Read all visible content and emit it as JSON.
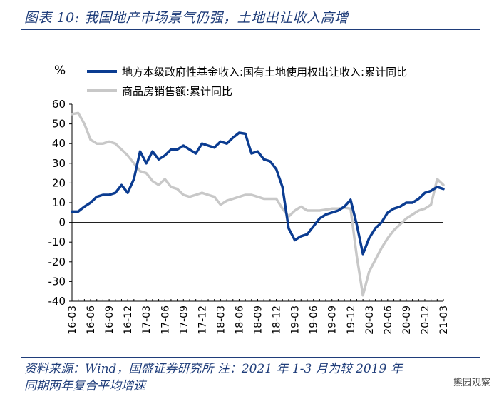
{
  "header": {
    "title": "图表 10: 我国地产市场景气仍强，土地出让收入高增"
  },
  "footer": {
    "source_line1": "资料来源：Wind，国盛证券研究所  注：2021 年 1-3 月为较 2019 年",
    "source_line2": "同期两年复合平均增速"
  },
  "watermark": {
    "text": "熊园观察"
  },
  "colors": {
    "series1": "#0b3c91",
    "series2": "#c8c8c8",
    "axis": "#000000",
    "text_dark": "#1f3d7a"
  },
  "chart_data": {
    "type": "line",
    "ylabel": "%",
    "ylim": [
      -40,
      60
    ],
    "yticks": [
      60,
      50,
      40,
      30,
      20,
      10,
      0,
      -10,
      -20,
      -30,
      -40
    ],
    "xlim": [
      0,
      60
    ],
    "x_ticks": [
      {
        "label": "16-03",
        "x": 0
      },
      {
        "label": "16-06",
        "x": 3
      },
      {
        "label": "16-09",
        "x": 6
      },
      {
        "label": "16-12",
        "x": 9
      },
      {
        "label": "17-03",
        "x": 12
      },
      {
        "label": "17-06",
        "x": 15
      },
      {
        "label": "17-09",
        "x": 18
      },
      {
        "label": "17-12",
        "x": 21
      },
      {
        "label": "18-03",
        "x": 24
      },
      {
        "label": "18-06",
        "x": 27
      },
      {
        "label": "18-09",
        "x": 30
      },
      {
        "label": "18-12",
        "x": 33
      },
      {
        "label": "19-03",
        "x": 36
      },
      {
        "label": "19-06",
        "x": 39
      },
      {
        "label": "19-09",
        "x": 42
      },
      {
        "label": "19-12",
        "x": 45
      },
      {
        "label": "20-03",
        "x": 48
      },
      {
        "label": "20-06",
        "x": 51
      },
      {
        "label": "20-09",
        "x": 54
      },
      {
        "label": "20-12",
        "x": 57
      },
      {
        "label": "21-03",
        "x": 60
      }
    ],
    "legend_position": "top",
    "series": [
      {
        "name": "地方本级政府性基金收入:国有土地使用权出让收入:累计同比",
        "points": [
          [
            0,
            5.5
          ],
          [
            1,
            5.5
          ],
          [
            2,
            8
          ],
          [
            3,
            10
          ],
          [
            4,
            13
          ],
          [
            5,
            14
          ],
          [
            6,
            14
          ],
          [
            7,
            15
          ],
          [
            8,
            19
          ],
          [
            9,
            15
          ],
          [
            10,
            22
          ],
          [
            11,
            36
          ],
          [
            12,
            30
          ],
          [
            13,
            36
          ],
          [
            14,
            32
          ],
          [
            15,
            34
          ],
          [
            16,
            37
          ],
          [
            17,
            37
          ],
          [
            18,
            39
          ],
          [
            19,
            37
          ],
          [
            20,
            35
          ],
          [
            21,
            40
          ],
          [
            22,
            39
          ],
          [
            23,
            38
          ],
          [
            24,
            41
          ],
          [
            25,
            40
          ],
          [
            26,
            43
          ],
          [
            27,
            45.5
          ],
          [
            28,
            45
          ],
          [
            29,
            35
          ],
          [
            30,
            36
          ],
          [
            31,
            32
          ],
          [
            32,
            31
          ],
          [
            33,
            27
          ],
          [
            34,
            18
          ],
          [
            35,
            -3
          ],
          [
            36,
            -9
          ],
          [
            37,
            -7
          ],
          [
            38,
            -6
          ],
          [
            39,
            -2
          ],
          [
            40,
            2
          ],
          [
            41,
            4
          ],
          [
            42,
            5
          ],
          [
            43,
            6
          ],
          [
            44,
            8
          ],
          [
            45,
            11.5
          ],
          [
            46,
            -1
          ],
          [
            47,
            -16
          ],
          [
            48,
            -8
          ],
          [
            49,
            -3
          ],
          [
            50,
            0
          ],
          [
            51,
            5
          ],
          [
            52,
            7
          ],
          [
            53,
            8
          ],
          [
            54,
            10
          ],
          [
            55,
            10
          ],
          [
            56,
            12
          ],
          [
            57,
            15
          ],
          [
            58,
            16
          ],
          [
            59,
            18
          ],
          [
            60,
            17
          ]
        ]
      },
      {
        "name": "商品房销售额:累计同比",
        "points": [
          [
            0,
            55
          ],
          [
            1,
            55.5
          ],
          [
            2,
            50
          ],
          [
            3,
            42
          ],
          [
            4,
            40
          ],
          [
            5,
            40
          ],
          [
            6,
            41
          ],
          [
            7,
            40
          ],
          [
            8,
            37
          ],
          [
            9,
            34
          ],
          [
            10,
            30
          ],
          [
            11,
            26
          ],
          [
            12,
            25
          ],
          [
            13,
            21
          ],
          [
            14,
            19
          ],
          [
            15,
            22
          ],
          [
            16,
            18
          ],
          [
            17,
            17
          ],
          [
            18,
            14
          ],
          [
            19,
            13
          ],
          [
            20,
            14
          ],
          [
            21,
            15
          ],
          [
            22,
            14
          ],
          [
            23,
            13
          ],
          [
            24,
            9
          ],
          [
            25,
            11
          ],
          [
            26,
            12
          ],
          [
            27,
            13
          ],
          [
            28,
            14
          ],
          [
            29,
            14
          ],
          [
            30,
            13
          ],
          [
            31,
            12
          ],
          [
            32,
            12
          ],
          [
            33,
            12
          ],
          [
            34,
            7
          ],
          [
            35,
            3
          ],
          [
            36,
            6
          ],
          [
            37,
            8
          ],
          [
            38,
            6
          ],
          [
            39,
            6
          ],
          [
            40,
            6
          ],
          [
            41,
            6.5
          ],
          [
            42,
            7
          ],
          [
            43,
            7
          ],
          [
            44,
            7.5
          ],
          [
            45,
            7
          ],
          [
            46,
            -17
          ],
          [
            47,
            -37
          ],
          [
            48,
            -25
          ],
          [
            49,
            -19
          ],
          [
            50,
            -13
          ],
          [
            51,
            -8
          ],
          [
            52,
            -4
          ],
          [
            53,
            -1
          ],
          [
            54,
            2
          ],
          [
            55,
            4
          ],
          [
            56,
            6
          ],
          [
            57,
            7
          ],
          [
            58,
            9
          ],
          [
            59,
            22
          ],
          [
            60,
            19
          ]
        ]
      }
    ]
  }
}
